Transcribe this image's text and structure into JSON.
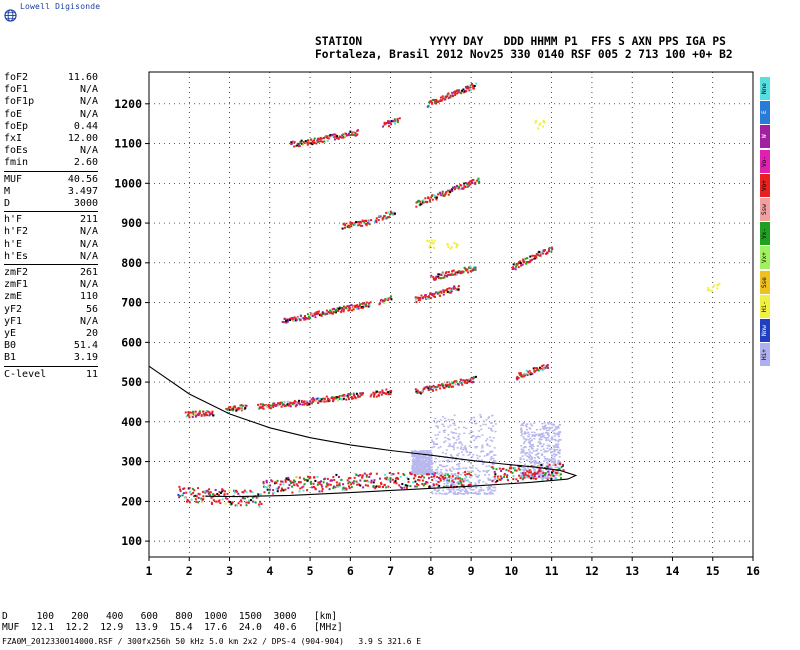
{
  "brand": {
    "name": "Lowell Digisonde",
    "logo_icon": "globe-icon"
  },
  "header": {
    "line1": "STATION          YYYY DAY   DDD HHMM P1  FFS S AXN PPS IGA PS",
    "line2": "Fortaleza, Brasil 2012 Nov25 330 0140 RSF 005 2 713 100 +0+ B2"
  },
  "parameters": {
    "group1": [
      {
        "k": "foF2",
        "v": "11.60"
      },
      {
        "k": "foF1",
        "v": "N/A"
      },
      {
        "k": "foF1p",
        "v": "N/A"
      },
      {
        "k": "foE",
        "v": "N/A"
      },
      {
        "k": "foEp",
        "v": "0.44"
      },
      {
        "k": "fxI",
        "v": "12.00"
      },
      {
        "k": "foEs",
        "v": "N/A"
      },
      {
        "k": "fmin",
        "v": "2.60"
      }
    ],
    "group2": [
      {
        "k": "MUF",
        "v": "40.56"
      },
      {
        "k": "M",
        "v": "3.497"
      },
      {
        "k": "D",
        "v": "3000"
      }
    ],
    "group3": [
      {
        "k": "h'F",
        "v": "211"
      },
      {
        "k": "h'F2",
        "v": "N/A"
      },
      {
        "k": "h'E",
        "v": "N/A"
      },
      {
        "k": "h'Es",
        "v": "N/A"
      }
    ],
    "group4": [
      {
        "k": "zmF2",
        "v": "261"
      },
      {
        "k": "zmF1",
        "v": "N/A"
      },
      {
        "k": "zmE",
        "v": "110"
      },
      {
        "k": "yF2",
        "v": "56"
      },
      {
        "k": "yF1",
        "v": "N/A"
      },
      {
        "k": "yE",
        "v": "20"
      },
      {
        "k": "B0",
        "v": "51.4"
      },
      {
        "k": "B1",
        "v": "3.19"
      }
    ],
    "group5": [
      {
        "k": "C-level",
        "v": "11"
      }
    ]
  },
  "legend": [
    {
      "label": "Nne",
      "color": "#55e0e0"
    },
    {
      "label": "E",
      "color": "#2a7ad8"
    },
    {
      "label": "W",
      "color": "#a020a0"
    },
    {
      "label": "Vo-",
      "color": "#e020b0"
    },
    {
      "label": "Vo+",
      "color": "#e82020"
    },
    {
      "label": "Ssw",
      "color": "#f0a0a0"
    },
    {
      "label": "Vx-",
      "color": "#20a020"
    },
    {
      "label": "Vx+",
      "color": "#a0f060"
    },
    {
      "label": "Sse",
      "color": "#f0c020"
    },
    {
      "label": "Hi-",
      "color": "#f0f040"
    },
    {
      "label": "Nnw",
      "color": "#2040c0"
    },
    {
      "label": "Hi+",
      "color": "#b0b0f0"
    }
  ],
  "footer": {
    "d_line": "D     100   200   400   600   800  1000  1500  3000   [km]",
    "muf_line": "MUF  12.1  12.2  12.9  13.9  15.4  17.6  24.0  40.6   [MHz]",
    "file_line": "FZA0M_2012330014000.RSF / 300fx256h 50 kHz 5.0 km 2x2 / DPS-4 (904-904)   3.9 S 321.6 E"
  },
  "chart_data": {
    "type": "scatter",
    "xlim": [
      1,
      16
    ],
    "ylim": [
      60,
      1280
    ],
    "xticks": [
      "1",
      "2",
      "3",
      "4",
      "5",
      "6",
      "7",
      "8",
      "9",
      "10",
      "11",
      "12",
      "13",
      "14",
      "15",
      "16"
    ],
    "yticks": [
      "100",
      "200",
      "300",
      "400",
      "500",
      "600",
      "700",
      "800",
      "900",
      "1000",
      "1100",
      "1200"
    ],
    "grid": true,
    "traces": [
      {
        "name": "",
        "segments": [
          [
            1.7,
            220,
            3.8,
            208
          ],
          [
            3.8,
            240,
            6.8,
            255
          ],
          [
            6.8,
            255,
            9.0,
            258
          ],
          [
            9.5,
            270,
            11.3,
            280
          ]
        ]
      },
      {
        "name": "",
        "segments": [
          [
            1.9,
            420,
            2.6,
            425
          ],
          [
            2.9,
            432,
            3.4,
            440
          ]
        ]
      },
      {
        "name": "",
        "segments": [
          [
            3.7,
            440,
            5.0,
            452
          ],
          [
            5.0,
            455,
            6.3,
            470
          ],
          [
            6.5,
            470,
            7.0,
            480
          ],
          [
            7.6,
            478,
            9.1,
            510
          ],
          [
            10.1,
            515,
            10.9,
            545
          ]
        ]
      },
      {
        "name": "",
        "segments": [
          [
            4.3,
            655,
            6.5,
            700
          ],
          [
            6.7,
            700,
            7.0,
            715
          ],
          [
            7.6,
            710,
            8.7,
            740
          ]
        ]
      },
      {
        "name": "",
        "segments": [
          [
            8.0,
            765,
            9.1,
            790
          ],
          [
            10.0,
            790,
            11.0,
            840
          ]
        ]
      },
      {
        "name": "",
        "segments": [
          [
            5.8,
            895,
            6.5,
            905
          ],
          [
            6.6,
            910,
            7.1,
            930
          ],
          [
            7.6,
            950,
            9.2,
            1010
          ]
        ]
      },
      {
        "name": "",
        "segments": [
          [
            4.5,
            1100,
            5.2,
            1110
          ],
          [
            5.2,
            1112,
            6.2,
            1130
          ],
          [
            6.8,
            1150,
            7.2,
            1160
          ],
          [
            7.9,
            1200,
            9.1,
            1250
          ]
        ]
      }
    ],
    "model_profile": [
      [
        1.0,
        540
      ],
      [
        2.0,
        470
      ],
      [
        3.0,
        420
      ],
      [
        4.0,
        385
      ],
      [
        5.0,
        360
      ],
      [
        6.0,
        342
      ],
      [
        7.0,
        328
      ],
      [
        8.0,
        316
      ],
      [
        9.0,
        303
      ],
      [
        9.8,
        294
      ],
      [
        10.6,
        286
      ],
      [
        11.2,
        278
      ],
      [
        11.6,
        265
      ],
      [
        11.4,
        256
      ],
      [
        10.5,
        248
      ],
      [
        9.0,
        238
      ],
      [
        7.5,
        230
      ],
      [
        6.0,
        222
      ],
      [
        4.5,
        215
      ],
      [
        3.2,
        212
      ],
      [
        2.4,
        213
      ]
    ],
    "diffuse_regions": [
      [
        8.0,
        9.6,
        220,
        420
      ],
      [
        10.2,
        11.2,
        260,
        400
      ],
      [
        7.5,
        8.0,
        270,
        330
      ]
    ],
    "yellow_marks": [
      [
        8.0,
        850
      ],
      [
        8.5,
        845
      ],
      [
        10.7,
        1150
      ],
      [
        15.0,
        740
      ]
    ]
  }
}
